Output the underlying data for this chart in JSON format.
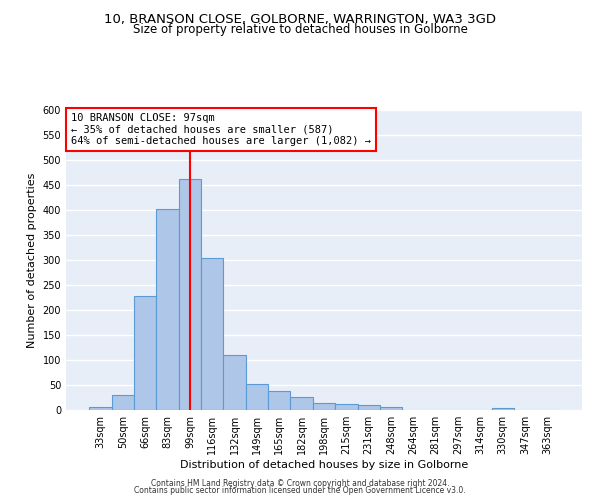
{
  "title1": "10, BRANSON CLOSE, GOLBORNE, WARRINGTON, WA3 3GD",
  "title2": "Size of property relative to detached houses in Golborne",
  "xlabel": "Distribution of detached houses by size in Golborne",
  "ylabel": "Number of detached properties",
  "categories": [
    "33sqm",
    "50sqm",
    "66sqm",
    "83sqm",
    "99sqm",
    "116sqm",
    "132sqm",
    "149sqm",
    "165sqm",
    "182sqm",
    "198sqm",
    "215sqm",
    "231sqm",
    "248sqm",
    "264sqm",
    "281sqm",
    "297sqm",
    "314sqm",
    "330sqm",
    "347sqm",
    "363sqm"
  ],
  "values": [
    7,
    30,
    228,
    402,
    463,
    305,
    110,
    53,
    39,
    26,
    14,
    13,
    10,
    6,
    0,
    0,
    0,
    0,
    5,
    0,
    0
  ],
  "bar_color": "#aec6e8",
  "bar_edge_color": "#5b9bd5",
  "vline_x": 4,
  "annotation_text": "10 BRANSON CLOSE: 97sqm\n← 35% of detached houses are smaller (587)\n64% of semi-detached houses are larger (1,082) →",
  "annotation_box_color": "white",
  "annotation_box_edge_color": "red",
  "footer1": "Contains HM Land Registry data © Crown copyright and database right 2024.",
  "footer2": "Contains public sector information licensed under the Open Government Licence v3.0.",
  "ylim": [
    0,
    600
  ],
  "yticks": [
    0,
    50,
    100,
    150,
    200,
    250,
    300,
    350,
    400,
    450,
    500,
    550,
    600
  ],
  "background_color": "#e8eef7",
  "grid_color": "white",
  "title1_fontsize": 9.5,
  "title2_fontsize": 8.5,
  "tick_fontsize": 7,
  "label_fontsize": 8,
  "annotation_fontsize": 7.5,
  "footer_fontsize": 5.5
}
